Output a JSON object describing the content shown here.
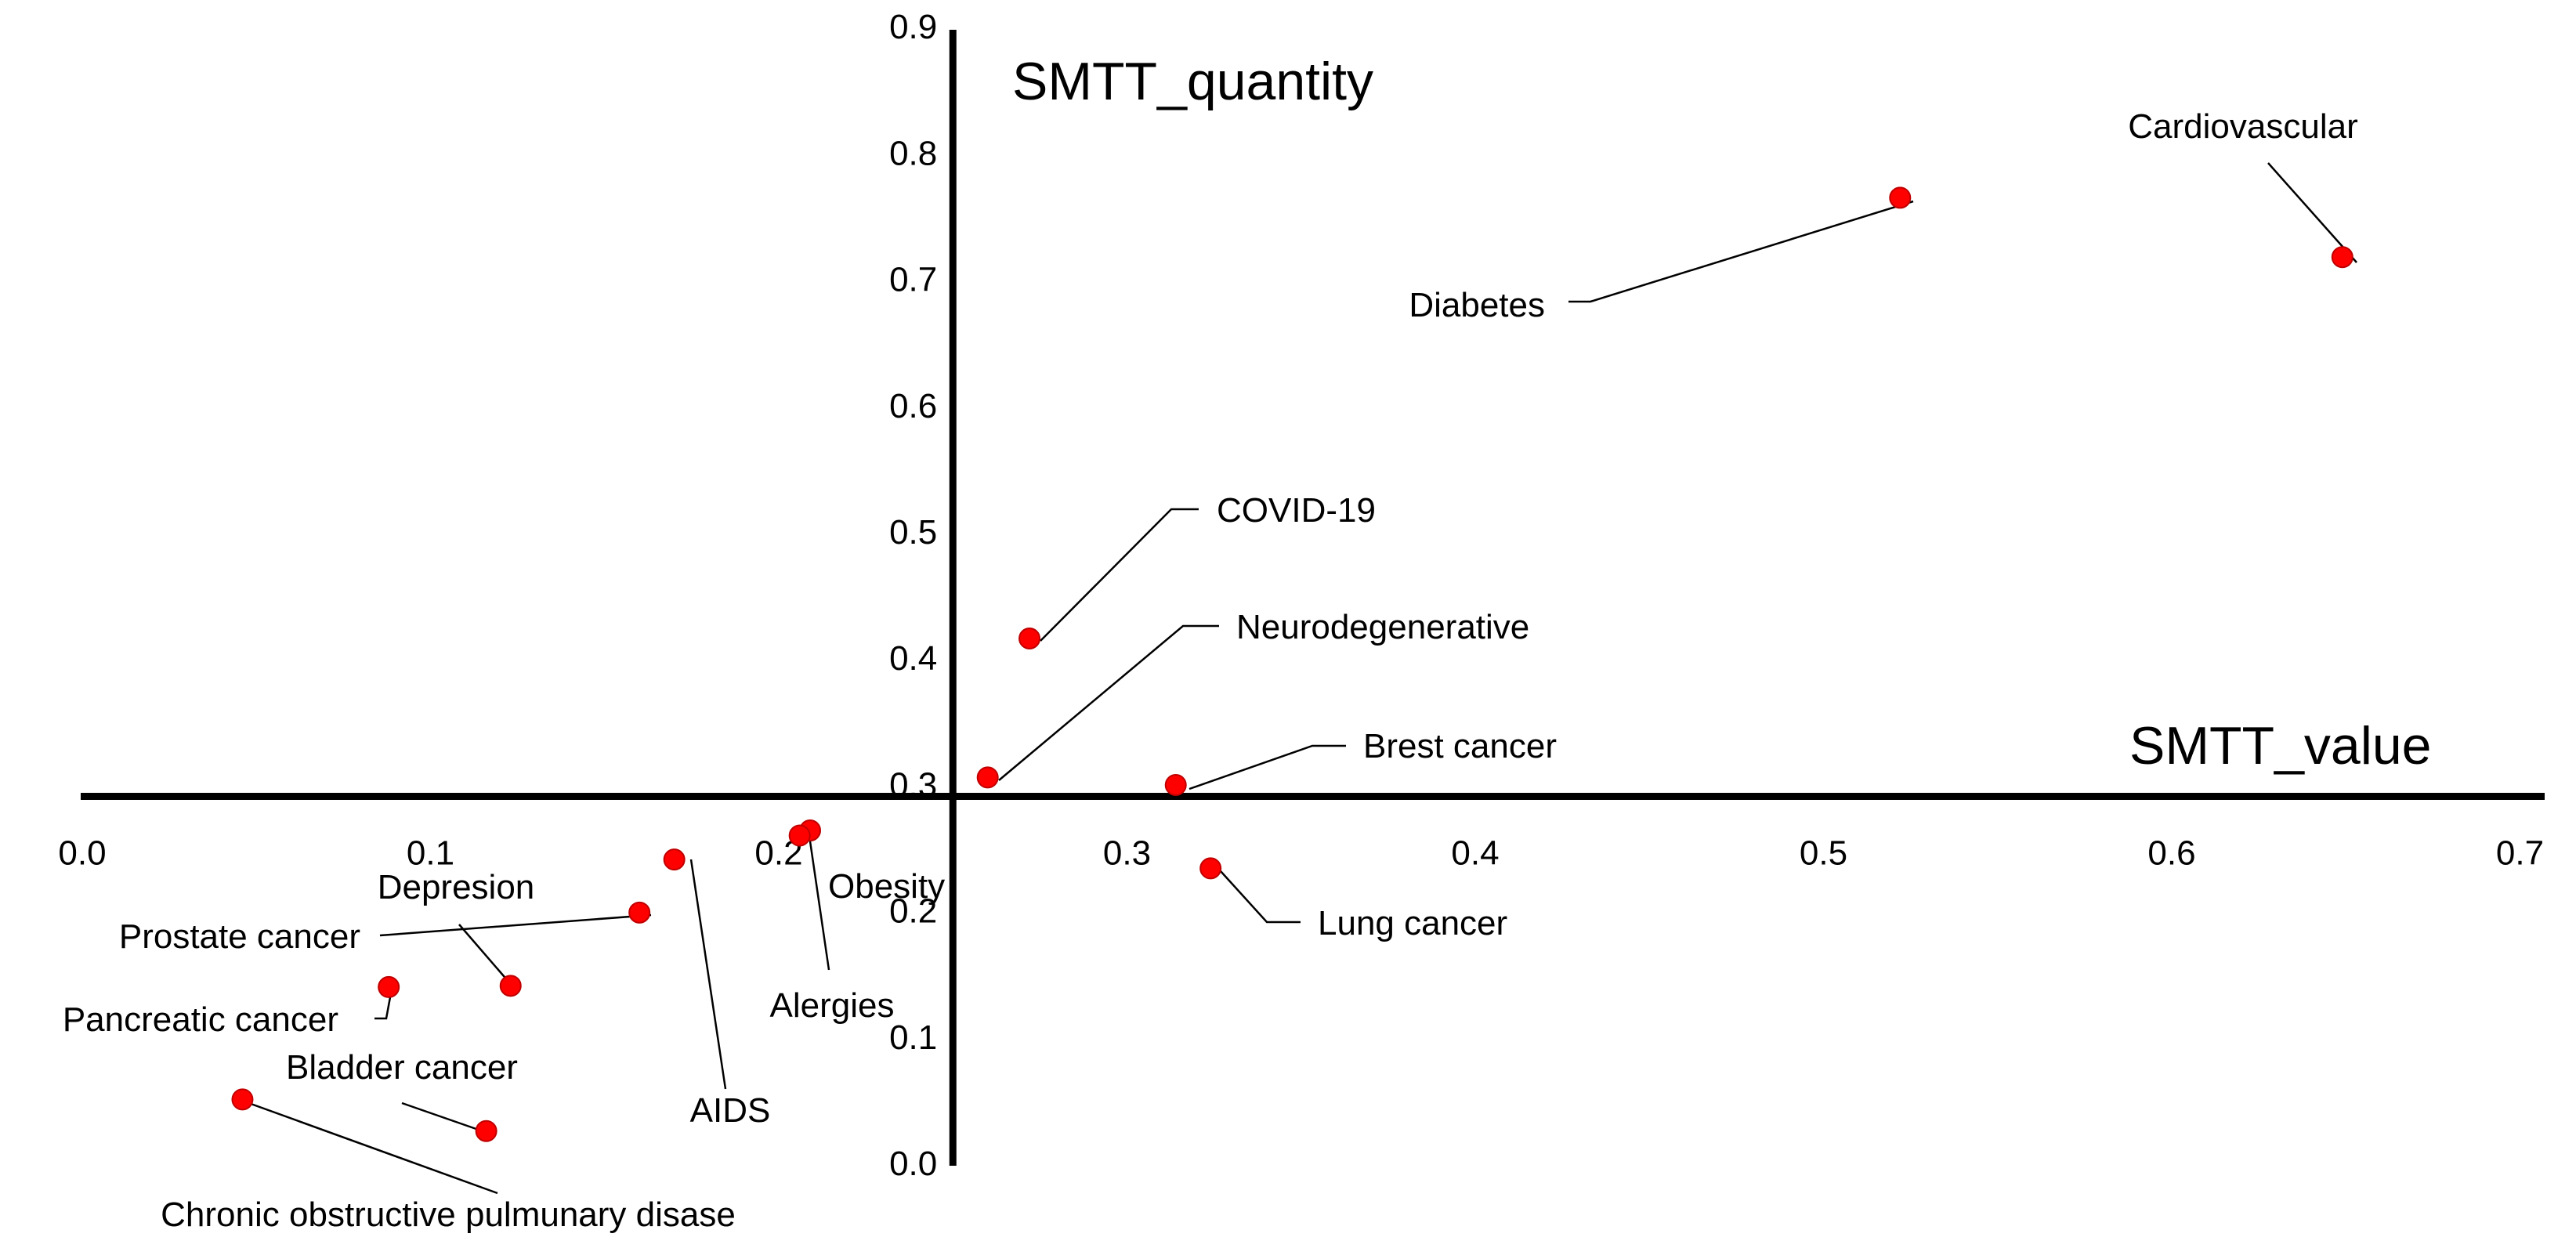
{
  "chart_data": {
    "type": "scatter",
    "xlabel": "SMTT_value",
    "ylabel": "SMTT_quantity",
    "xlim": [
      0.0,
      0.7
    ],
    "ylim": [
      0.0,
      0.9
    ],
    "x_ticks": [
      "0.0",
      "0.1",
      "0.2",
      "0.3",
      "0.4",
      "0.5",
      "0.6",
      "0.7"
    ],
    "y_ticks": [
      "0.0",
      "0.1",
      "0.2",
      "0.3",
      "0.4",
      "0.5",
      "0.6",
      "0.7",
      "0.8",
      "0.9"
    ],
    "axes_cross": {
      "x": 0.25,
      "y": 0.29
    },
    "grid": false,
    "marker_color": "#ff0000",
    "points": [
      {
        "name": "Cardiovascular",
        "x": 0.649,
        "y": 0.717
      },
      {
        "name": "Diabetes",
        "x": 0.522,
        "y": 0.764
      },
      {
        "name": "COVID-19",
        "x": 0.272,
        "y": 0.415
      },
      {
        "name": "Neurodegenerative",
        "x": 0.26,
        "y": 0.305
      },
      {
        "name": "Brest cancer",
        "x": 0.314,
        "y": 0.299
      },
      {
        "name": "Lung cancer",
        "x": 0.324,
        "y": 0.233
      },
      {
        "name": "Obesity",
        "x": 0.209,
        "y": 0.263
      },
      {
        "name": "Alergies",
        "x": 0.206,
        "y": 0.259
      },
      {
        "name": "AIDS",
        "x": 0.17,
        "y": 0.24
      },
      {
        "name": "Prostate cancer",
        "x": 0.16,
        "y": 0.198
      },
      {
        "name": "Depresion",
        "x": 0.123,
        "y": 0.14
      },
      {
        "name": "Pancreatic cancer",
        "x": 0.088,
        "y": 0.139
      },
      {
        "name": "Bladder cancer",
        "x": 0.116,
        "y": 0.025
      },
      {
        "name": "Chronic obstructive pulmunary disase",
        "x": 0.046,
        "y": 0.05
      }
    ]
  }
}
